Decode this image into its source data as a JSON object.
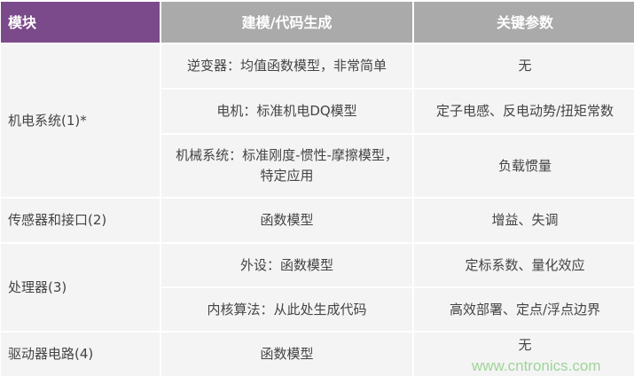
{
  "header": {
    "module": "模块",
    "modeling": "建模/代码生成",
    "params": "关键参数"
  },
  "rows": [
    {
      "module": "机电系统(1)*",
      "modeling": "逆变器：均值函数模型，非常简单",
      "params": "无"
    },
    {
      "modeling": "电机：标准机电DQ模型",
      "params": "定子电感、反电动势/扭矩常数"
    },
    {
      "modeling": "机械系统：标准刚度-惯性-摩擦模型，特定应用",
      "params": "负载惯量"
    },
    {
      "module": "传感器和接口(2)",
      "modeling": "函数模型",
      "params": "增益、失调"
    },
    {
      "module": "处理器(3)",
      "modeling": "外设：函数模型",
      "params": "定标系数、量化效应"
    },
    {
      "modeling": "内核算法：从此处生成代码",
      "params": "高效部署、定点/浮点边界"
    },
    {
      "module": "驱动器电路(4)",
      "modeling": "函数模型",
      "params": "无"
    }
  ],
  "watermark": "www.cntronics.com",
  "colors": {
    "header_accent": "#7b4a8a",
    "header_gray": "#aaaaaa",
    "cell": "#f4f4f4"
  }
}
